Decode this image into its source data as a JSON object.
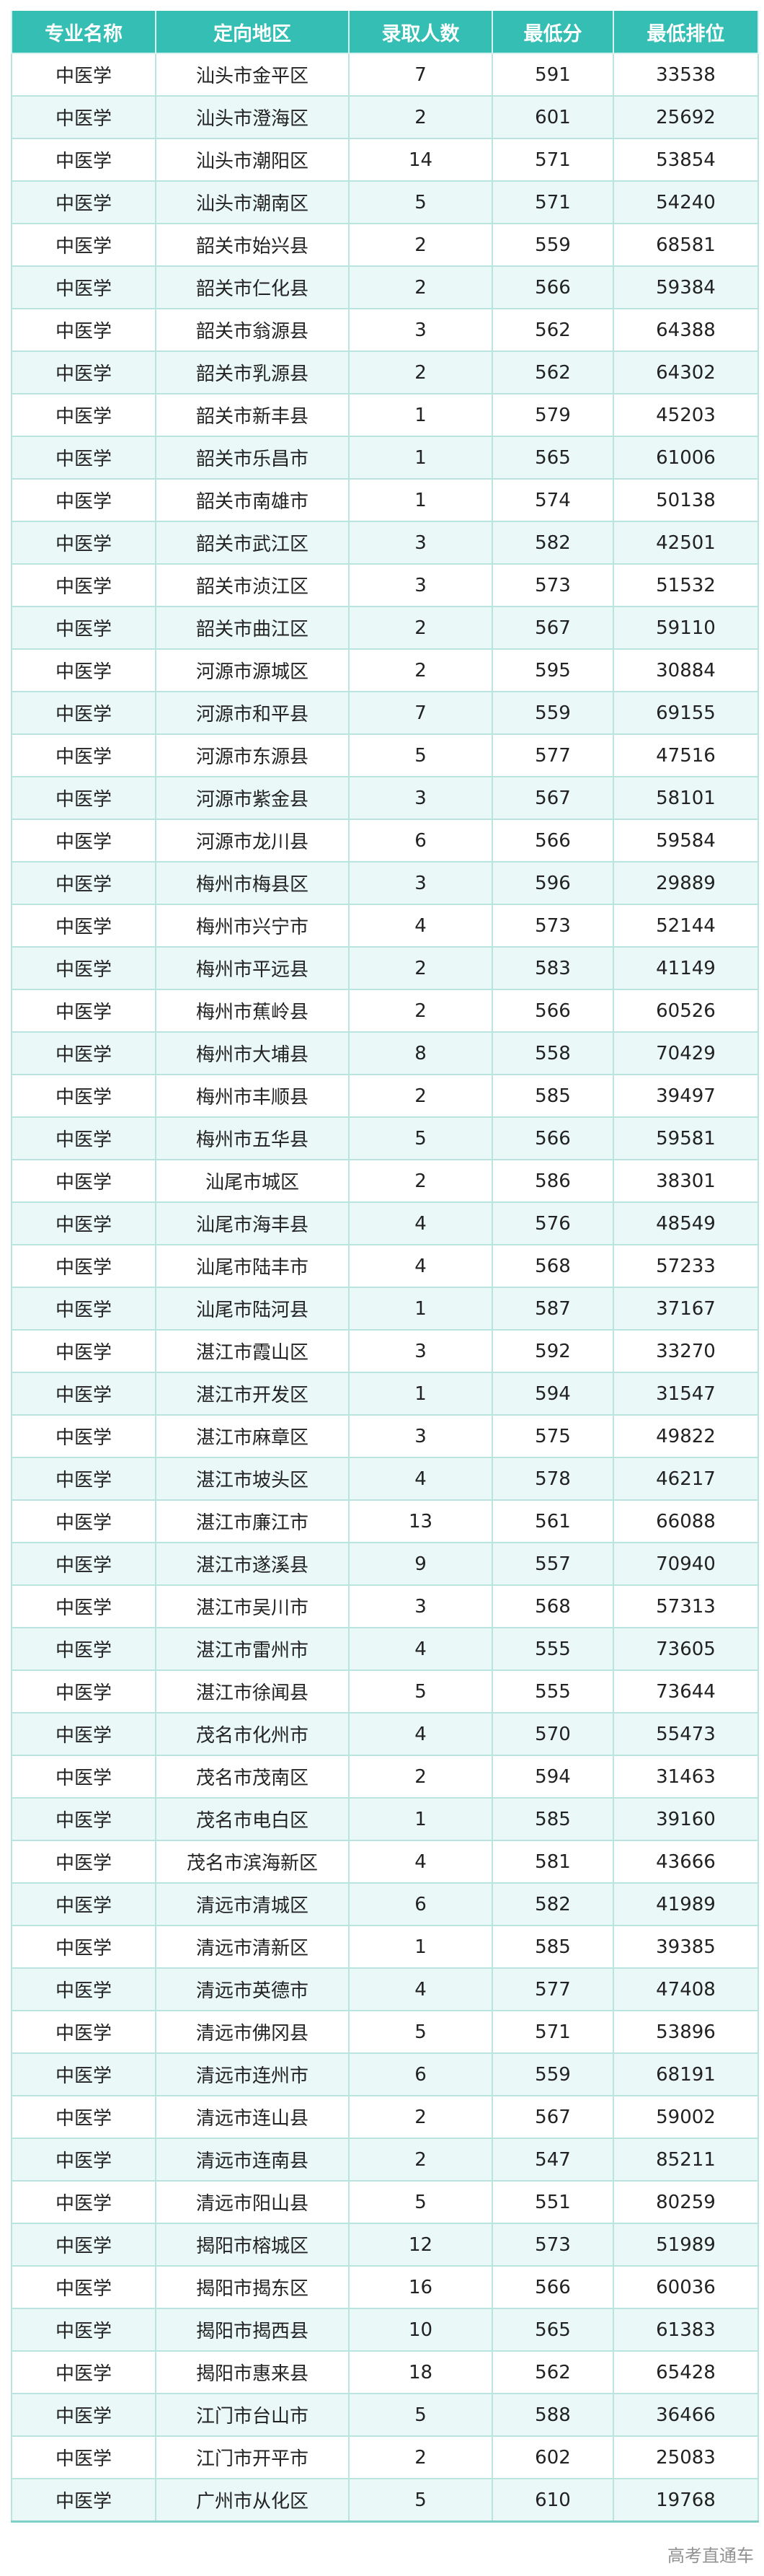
{
  "colors": {
    "header_bg": "#35bfb4",
    "alt_row_bg": "#eaf8f7",
    "border": "#b9e4df"
  },
  "table": {
    "headers": [
      "专业名称",
      "定向地区",
      "录取人数",
      "最低分",
      "最低排位"
    ],
    "rows": [
      [
        "中医学",
        "汕头市金平区",
        "7",
        "591",
        "33538"
      ],
      [
        "中医学",
        "汕头市澄海区",
        "2",
        "601",
        "25692"
      ],
      [
        "中医学",
        "汕头市潮阳区",
        "14",
        "571",
        "53854"
      ],
      [
        "中医学",
        "汕头市潮南区",
        "5",
        "571",
        "54240"
      ],
      [
        "中医学",
        "韶关市始兴县",
        "2",
        "559",
        "68581"
      ],
      [
        "中医学",
        "韶关市仁化县",
        "2",
        "566",
        "59384"
      ],
      [
        "中医学",
        "韶关市翁源县",
        "3",
        "562",
        "64388"
      ],
      [
        "中医学",
        "韶关市乳源县",
        "2",
        "562",
        "64302"
      ],
      [
        "中医学",
        "韶关市新丰县",
        "1",
        "579",
        "45203"
      ],
      [
        "中医学",
        "韶关市乐昌市",
        "1",
        "565",
        "61006"
      ],
      [
        "中医学",
        "韶关市南雄市",
        "1",
        "574",
        "50138"
      ],
      [
        "中医学",
        "韶关市武江区",
        "3",
        "582",
        "42501"
      ],
      [
        "中医学",
        "韶关市浈江区",
        "3",
        "573",
        "51532"
      ],
      [
        "中医学",
        "韶关市曲江区",
        "2",
        "567",
        "59110"
      ],
      [
        "中医学",
        "河源市源城区",
        "2",
        "595",
        "30884"
      ],
      [
        "中医学",
        "河源市和平县",
        "7",
        "559",
        "69155"
      ],
      [
        "中医学",
        "河源市东源县",
        "5",
        "577",
        "47516"
      ],
      [
        "中医学",
        "河源市紫金县",
        "3",
        "567",
        "58101"
      ],
      [
        "中医学",
        "河源市龙川县",
        "6",
        "566",
        "59584"
      ],
      [
        "中医学",
        "梅州市梅县区",
        "3",
        "596",
        "29889"
      ],
      [
        "中医学",
        "梅州市兴宁市",
        "4",
        "573",
        "52144"
      ],
      [
        "中医学",
        "梅州市平远县",
        "2",
        "583",
        "41149"
      ],
      [
        "中医学",
        "梅州市蕉岭县",
        "2",
        "566",
        "60526"
      ],
      [
        "中医学",
        "梅州市大埔县",
        "8",
        "558",
        "70429"
      ],
      [
        "中医学",
        "梅州市丰顺县",
        "2",
        "585",
        "39497"
      ],
      [
        "中医学",
        "梅州市五华县",
        "5",
        "566",
        "59581"
      ],
      [
        "中医学",
        "汕尾市城区",
        "2",
        "586",
        "38301"
      ],
      [
        "中医学",
        "汕尾市海丰县",
        "4",
        "576",
        "48549"
      ],
      [
        "中医学",
        "汕尾市陆丰市",
        "4",
        "568",
        "57233"
      ],
      [
        "中医学",
        "汕尾市陆河县",
        "1",
        "587",
        "37167"
      ],
      [
        "中医学",
        "湛江市霞山区",
        "3",
        "592",
        "33270"
      ],
      [
        "中医学",
        "湛江市开发区",
        "1",
        "594",
        "31547"
      ],
      [
        "中医学",
        "湛江市麻章区",
        "3",
        "575",
        "49822"
      ],
      [
        "中医学",
        "湛江市坡头区",
        "4",
        "578",
        "46217"
      ],
      [
        "中医学",
        "湛江市廉江市",
        "13",
        "561",
        "66088"
      ],
      [
        "中医学",
        "湛江市遂溪县",
        "9",
        "557",
        "70940"
      ],
      [
        "中医学",
        "湛江市吴川市",
        "3",
        "568",
        "57313"
      ],
      [
        "中医学",
        "湛江市雷州市",
        "4",
        "555",
        "73605"
      ],
      [
        "中医学",
        "湛江市徐闻县",
        "5",
        "555",
        "73644"
      ],
      [
        "中医学",
        "茂名市化州市",
        "4",
        "570",
        "55473"
      ],
      [
        "中医学",
        "茂名市茂南区",
        "2",
        "594",
        "31463"
      ],
      [
        "中医学",
        "茂名市电白区",
        "1",
        "585",
        "39160"
      ],
      [
        "中医学",
        "茂名市滨海新区",
        "4",
        "581",
        "43666"
      ],
      [
        "中医学",
        "清远市清城区",
        "6",
        "582",
        "41989"
      ],
      [
        "中医学",
        "清远市清新区",
        "1",
        "585",
        "39385"
      ],
      [
        "中医学",
        "清远市英德市",
        "4",
        "577",
        "47408"
      ],
      [
        "中医学",
        "清远市佛冈县",
        "5",
        "571",
        "53896"
      ],
      [
        "中医学",
        "清远市连州市",
        "6",
        "559",
        "68191"
      ],
      [
        "中医学",
        "清远市连山县",
        "2",
        "567",
        "59002"
      ],
      [
        "中医学",
        "清远市连南县",
        "2",
        "547",
        "85211"
      ],
      [
        "中医学",
        "清远市阳山县",
        "5",
        "551",
        "80259"
      ],
      [
        "中医学",
        "揭阳市榕城区",
        "12",
        "573",
        "51989"
      ],
      [
        "中医学",
        "揭阳市揭东区",
        "16",
        "566",
        "60036"
      ],
      [
        "中医学",
        "揭阳市揭西县",
        "10",
        "565",
        "61383"
      ],
      [
        "中医学",
        "揭阳市惠来县",
        "18",
        "562",
        "65428"
      ],
      [
        "中医学",
        "江门市台山市",
        "5",
        "588",
        "36466"
      ],
      [
        "中医学",
        "江门市开平市",
        "2",
        "602",
        "25083"
      ],
      [
        "中医学",
        "广州市从化区",
        "5",
        "610",
        "19768"
      ]
    ]
  },
  "watermark": "高考直通车"
}
